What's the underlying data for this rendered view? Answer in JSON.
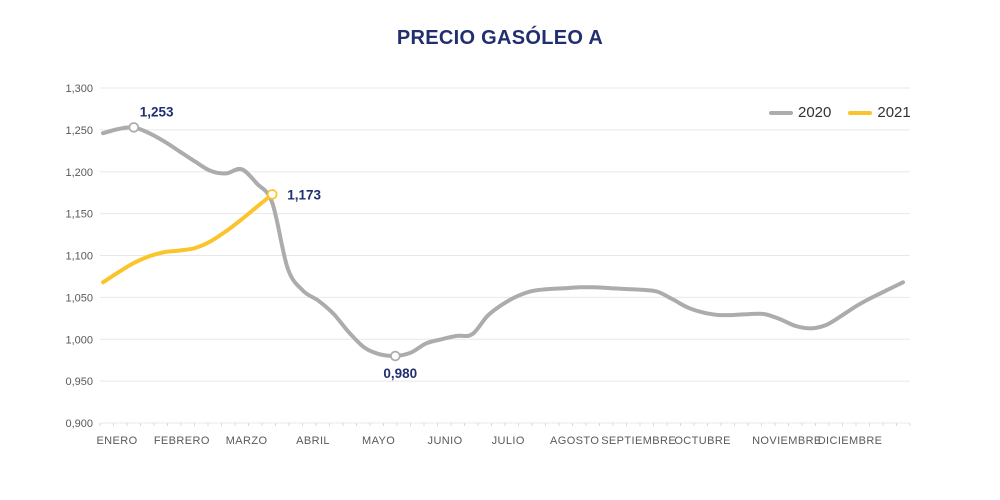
{
  "title": "PRECIO GASÓLEO A",
  "legend": {
    "items": [
      {
        "label": "2020",
        "color": "#ACACAC"
      },
      {
        "label": "2021",
        "color": "#FCC42C"
      }
    ]
  },
  "colors": {
    "title_text": "#212E6F",
    "axis_text": "#595959",
    "legend_text": "#333333",
    "gridline": "#E8E8E8",
    "tick": "#D9D9D9",
    "annotation_text": "#212E6F",
    "marker_fill": "#FFFFFF"
  },
  "chart_data": {
    "type": "line",
    "title": "PRECIO GASÓLEO A",
    "xlabel": "",
    "ylabel": "",
    "grid": "horizontal",
    "legend_position": "top-right-inside",
    "x_axis": {
      "categories": [
        "ENERO",
        "FEBRERO",
        "MARZO",
        "ABRIL",
        "MAYO",
        "JUNIO",
        "JULIO",
        "AGOSTO",
        "SEPTIEMBRE",
        "OCTUBRE",
        "NOVIEMBRE",
        "DICIEMBRE"
      ]
    },
    "y_axis": {
      "min": 0.9,
      "max": 1.3,
      "step": 0.05,
      "tick_labels_top_to_bottom": [
        "1,300",
        "1,250",
        "1,200",
        "1,150",
        "1,100",
        "1,050",
        "1,000",
        "0,950",
        "0,900"
      ]
    },
    "series": [
      {
        "name": "2020",
        "color": "#ACACAC",
        "granularity": "weekly",
        "values": [
          1.246,
          1.251,
          1.253,
          1.246,
          1.236,
          1.224,
          1.212,
          1.201,
          1.198,
          1.203,
          1.186,
          1.163,
          1.085,
          1.058,
          1.046,
          1.03,
          1.008,
          0.99,
          0.982,
          0.98,
          0.984,
          0.995,
          1.0,
          1.004,
          1.006,
          1.028,
          1.042,
          1.052,
          1.058,
          1.06,
          1.061,
          1.062,
          1.062,
          1.061,
          1.06,
          1.059,
          1.057,
          1.048,
          1.038,
          1.032,
          1.029,
          1.029,
          1.03,
          1.03,
          1.024,
          1.016,
          1.013,
          1.017,
          1.028,
          1.04,
          1.05,
          1.059,
          1.068
        ]
      },
      {
        "name": "2021",
        "color": "#FCC42C",
        "granularity": "weekly",
        "values": [
          1.068,
          1.08,
          1.091,
          1.099,
          1.104,
          1.106,
          1.109,
          1.117,
          1.129,
          1.143,
          1.158,
          1.173
        ]
      }
    ],
    "annotations": [
      {
        "series": "2020",
        "week": 3,
        "value": 1.253,
        "label": "1,253",
        "placement": "above"
      },
      {
        "series": "2021",
        "week": 12,
        "value": 1.173,
        "label": "1,173",
        "placement": "right"
      },
      {
        "series": "2020",
        "week": 20,
        "value": 0.98,
        "label": "0,980",
        "placement": "below"
      }
    ]
  }
}
